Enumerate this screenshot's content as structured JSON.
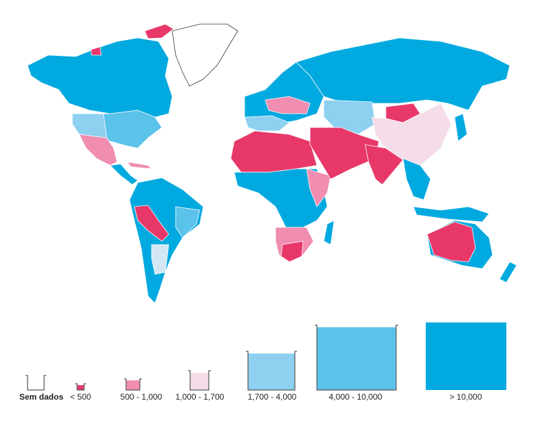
{
  "legend": {
    "items": [
      {
        "label": "Sem dados",
        "color": "#ffffff"
      },
      {
        "label": "< 500",
        "color": "#e8386a"
      },
      {
        "label": "500 - 1,000",
        "color": "#f08db0"
      },
      {
        "label": "1,000 - 1,700",
        "color": "#f4dce8"
      },
      {
        "label": "1,700 - 4,000",
        "color": "#8dd0f0"
      },
      {
        "label": "4,000 - 10,000",
        "color": "#5bc2ea"
      },
      {
        "label": "> 10,000",
        "color": "#00a9df"
      }
    ]
  }
}
